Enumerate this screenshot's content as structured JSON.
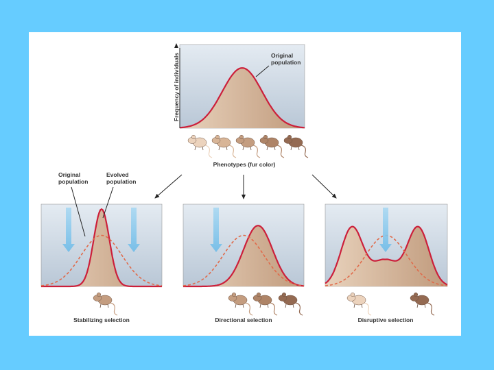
{
  "top": {
    "y_axis_label": "Frequency of individuals",
    "callout": [
      "Original",
      "population"
    ],
    "x_axis_label": "Phenotypes (fur color)"
  },
  "callouts": {
    "original": [
      "Original",
      "population"
    ],
    "evolved": [
      "Evolved",
      "population"
    ]
  },
  "panels": [
    {
      "label": "Stabilizing selection"
    },
    {
      "label": "Directional selection"
    },
    {
      "label": "Disruptive selection"
    }
  ]
}
